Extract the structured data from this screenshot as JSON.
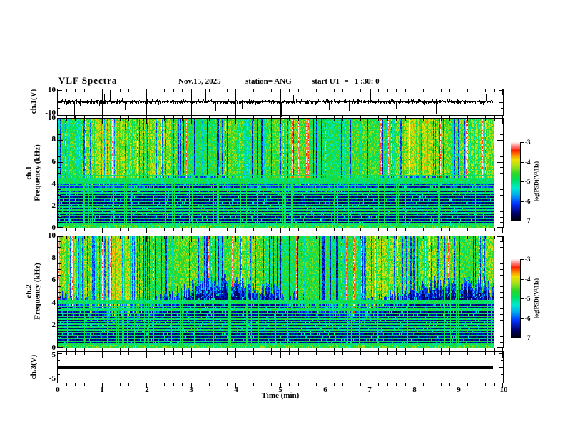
{
  "header": {
    "title": "VLF Spectra",
    "date": "Nov.15, 2025",
    "station": "station= ANG",
    "start_ut": "start UT  =   1 :30: 0"
  },
  "colors": {
    "background": "#ffffff",
    "frame": "#000000",
    "waveform": "#000000",
    "colormap_stops": [
      [
        0.0,
        "#000006"
      ],
      [
        0.1,
        "#00006a"
      ],
      [
        0.22,
        "#0030ff"
      ],
      [
        0.33,
        "#00a8f0"
      ],
      [
        0.42,
        "#00e8d0"
      ],
      [
        0.52,
        "#00e060"
      ],
      [
        0.6,
        "#28d828"
      ],
      [
        0.7,
        "#a8e018"
      ],
      [
        0.78,
        "#f0e000"
      ],
      [
        0.85,
        "#ff7800"
      ],
      [
        0.9,
        "#ff2000"
      ],
      [
        0.95,
        "#ff8080"
      ],
      [
        1.0,
        "#ffecec"
      ]
    ]
  },
  "chart_data": {
    "type": "multi-panel",
    "x_axis": {
      "label": "Time (min)",
      "min": 0,
      "max": 10,
      "tick_labels": [
        "0",
        "1",
        "2",
        "3",
        "4",
        "5",
        "6",
        "7",
        "8",
        "9",
        "10"
      ],
      "minor_step_min": 0.2,
      "data_end_min": 9.78
    },
    "panels": [
      {
        "type": "line",
        "id": "ch1_wave",
        "ylabel": "ch.1(V)",
        "ylim": [
          -11.5,
          11.5
        ],
        "ytick_labels": [
          "10",
          "-10"
        ],
        "ytick_values": [
          10,
          -10
        ],
        "grid_minutes": true,
        "signal": {
          "kind": "noise",
          "baseline_v": 0,
          "noise_amp_v": 1.1,
          "spikes_min_v": [
            [
              0.38,
              -7.5
            ],
            [
              1.05,
              3.5
            ],
            [
              1.18,
              5
            ],
            [
              1.52,
              -3.5
            ],
            [
              2.1,
              -2.5
            ],
            [
              3.33,
              8.5
            ],
            [
              3.55,
              -4
            ],
            [
              4.15,
              -3
            ],
            [
              5.02,
              -6.5
            ],
            [
              5.3,
              3
            ],
            [
              6.1,
              -3.5
            ],
            [
              6.55,
              -4
            ],
            [
              7.0,
              -9
            ],
            [
              7.03,
              6.5
            ],
            [
              7.6,
              -3.2
            ],
            [
              8.5,
              -5
            ],
            [
              9.0,
              -3.5
            ],
            [
              9.3,
              4
            ],
            [
              9.62,
              3.5
            ]
          ],
          "seed": 7
        }
      },
      {
        "type": "heatmap",
        "id": "ch1_spec",
        "ylabel": "ch.1\nFrequency (kHz)",
        "ylim": [
          0,
          10
        ],
        "ytick_labels": [
          "10",
          "8",
          "6",
          "4",
          "2",
          "0"
        ],
        "ytick_values": [
          10,
          8,
          6,
          4,
          2,
          0
        ],
        "colorbar": {
          "label": "log(PSD)(V²/Hz)",
          "tick_labels": [
            "-3",
            "-4",
            "-5",
            "-6",
            "-7"
          ]
        },
        "value_range_log_psd": [
          -7,
          -3
        ],
        "bright_above_khz": 4.35,
        "boundary_jitter_khz": 0.3,
        "bottom_band_khz": 0.22,
        "line_freqs_khz": [
          0.45,
          0.7,
          0.95,
          1.2,
          1.45,
          1.7,
          1.95,
          2.2,
          2.45,
          2.7,
          2.95,
          3.2,
          3.45,
          3.7,
          3.9,
          4.1,
          4.3,
          4.45,
          4.6,
          4.75
        ],
        "red_streak_density": 0.045,
        "dark_streak_density": 0.13,
        "cool_streak_density": 0.1,
        "vline_density": 0.07,
        "seed": 101
      },
      {
        "type": "heatmap",
        "id": "ch2_spec",
        "ylabel": "ch.2\nFrequency (kHz)",
        "ylim": [
          0,
          10
        ],
        "ytick_labels": [
          "10",
          "8",
          "6",
          "4",
          "2",
          "0"
        ],
        "ytick_values": [
          10,
          8,
          6,
          4,
          2,
          0
        ],
        "colorbar": {
          "label": "log(PSD)(V²/Hz)",
          "tick_labels": [
            "-3",
            "-4",
            "-5",
            "-6",
            "-7"
          ]
        },
        "value_range_log_psd": [
          -7,
          -3
        ],
        "bright_above_khz": 4.7,
        "boundary_jitter_khz": 1.2,
        "bottom_band_khz": 0.22,
        "line_freqs_khz": [
          0.4,
          0.65,
          0.9,
          1.15,
          1.4,
          1.65,
          1.9,
          2.15,
          2.4,
          2.65,
          2.9,
          3.15,
          3.4,
          3.6,
          3.8,
          4.0,
          4.2,
          4.35
        ],
        "red_streak_density": 0.07,
        "dark_streak_density": 0.18,
        "cool_streak_density": 0.1,
        "vline_density": 0.07,
        "seed": 202
      },
      {
        "type": "line",
        "id": "ch3_wave",
        "ylabel": "ch.3(V)",
        "ylim": [
          -6.5,
          6.5
        ],
        "ytick_labels": [
          "5",
          "-5"
        ],
        "ytick_values": [
          5,
          -5
        ],
        "signal": {
          "kind": "flat",
          "baseline_v": 0,
          "thickness_px": 5
        }
      }
    ]
  }
}
